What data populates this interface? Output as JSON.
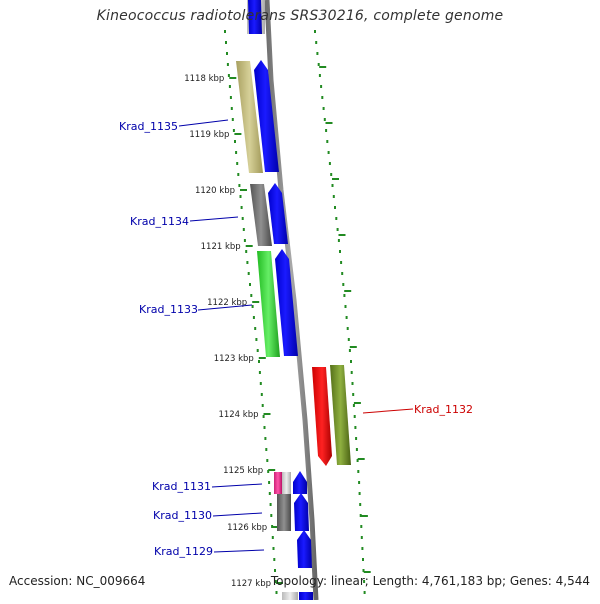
{
  "title": "Kineococcus radiotolerans SRS30216, complete genome",
  "accession": "Accession: NC_009664",
  "summary": "Topology: linear; Length: 4,761,183 bp; Genes: 4,544",
  "ruler_ticks": [
    {
      "label": "1118 kbp"
    },
    {
      "label": "1119 kbp"
    },
    {
      "label": "1120 kbp"
    },
    {
      "label": "1121 kbp"
    },
    {
      "label": "1122 kbp"
    },
    {
      "label": "1123 kbp"
    },
    {
      "label": "1124 kbp"
    },
    {
      "label": "1125 kbp"
    },
    {
      "label": "1126 kbp"
    },
    {
      "label": "1127 kbp"
    }
  ],
  "genes": [
    {
      "label": "Krad_1135",
      "color": "#0000aa"
    },
    {
      "label": "Krad_1134",
      "color": "#0000aa"
    },
    {
      "label": "Krad_1133",
      "color": "#0000aa"
    },
    {
      "label": "Krad_1132",
      "color": "#cc0000"
    },
    {
      "label": "Krad_1131",
      "color": "#0000aa"
    },
    {
      "label": "Krad_1130",
      "color": "#0000aa"
    },
    {
      "label": "Krad_1129",
      "color": "#0000aa"
    }
  ],
  "colors": {
    "track_dots": "#228B22",
    "backbone": "#888888",
    "gene_blue": "#0000ee",
    "gene_red": "#ee0000",
    "khaki": "#b8b070",
    "gray": "#707070",
    "green": "#33cc33",
    "olive": "#6b8e23",
    "pink": "#ee3399"
  }
}
